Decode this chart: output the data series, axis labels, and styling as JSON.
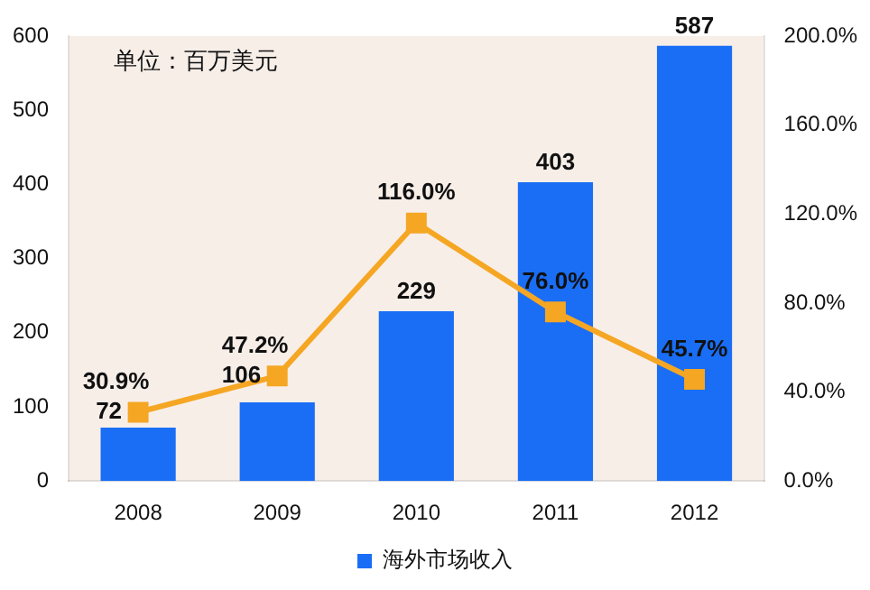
{
  "chart_data": {
    "type": "bar",
    "categories": [
      "2008",
      "2009",
      "2010",
      "2011",
      "2012"
    ],
    "series": [
      {
        "name": "海外市场收入",
        "color": "#1a6ef5",
        "values": [
          72,
          106,
          229,
          403,
          587
        ],
        "value_labels": [
          "72",
          "106",
          "229",
          "403",
          "587"
        ]
      },
      {
        "type": "line",
        "axis": "y2",
        "color": "#f5a623",
        "values": [
          30.9,
          47.2,
          116.0,
          76.0,
          45.7
        ],
        "value_labels": [
          "30.9%",
          "47.2%",
          "116.0%",
          "76.0%",
          "45.7%"
        ]
      }
    ],
    "ylim": [
      0,
      600
    ],
    "yticks": [
      0,
      100,
      200,
      300,
      400,
      500,
      600
    ],
    "y2lim": [
      0,
      200
    ],
    "y2ticks": [
      {
        "value": 0,
        "label": "0.0%"
      },
      {
        "value": 40,
        "label": "40.0%"
      },
      {
        "value": 80,
        "label": "80.0%"
      },
      {
        "value": 120,
        "label": "120.0%"
      },
      {
        "value": 160,
        "label": "160.0%"
      },
      {
        "value": 200,
        "label": "200.0%"
      }
    ],
    "marker": "square",
    "grid": false,
    "legend": "bottom",
    "annotations": [
      "单位：百万美元"
    ]
  }
}
